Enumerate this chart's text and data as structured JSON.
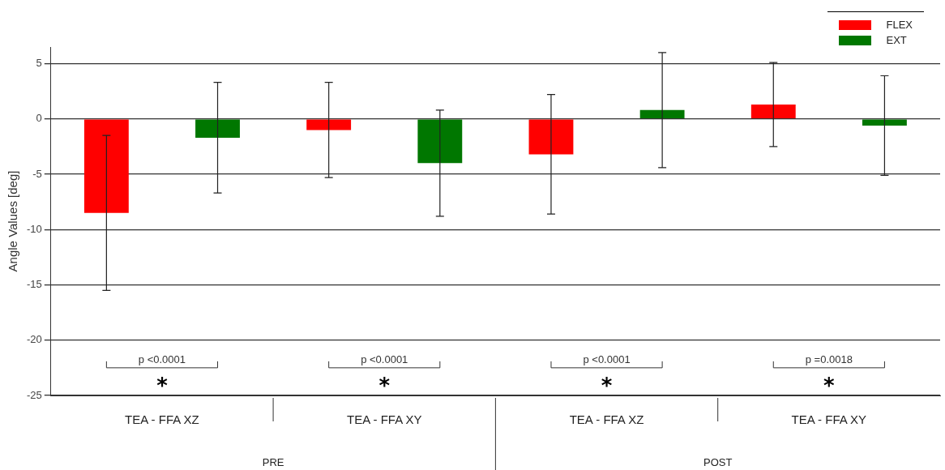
{
  "chart_data": {
    "type": "bar",
    "ylabel": "Angle Values [deg]",
    "categories": [
      "TEA - FFA XZ",
      "TEA - FFA XY",
      "TEA - FFA XZ",
      "TEA - FFA XY"
    ],
    "series": [
      {
        "name": "FLEX",
        "color": "#ff0000",
        "values": [
          -8.5,
          -1.0,
          -3.2,
          1.3
        ],
        "errors": [
          7.0,
          4.3,
          5.4,
          3.8
        ]
      },
      {
        "name": "EXT",
        "color": "#007700",
        "values": [
          -1.7,
          -4.0,
          0.8,
          -0.6
        ],
        "errors": [
          5.0,
          4.8,
          5.2,
          4.5
        ]
      }
    ],
    "ylim": [
      -25,
      6.5
    ],
    "yticks": [
      -25,
      -20,
      -15,
      -10,
      -5,
      0,
      5
    ],
    "grid": "y",
    "legend": "top right",
    "annotations": [
      "p <0.0001",
      "p <0.0001",
      "p <0.0001",
      "p =0.0018",
      "*",
      "*",
      "*",
      "*",
      "PRE",
      "POST"
    ]
  }
}
